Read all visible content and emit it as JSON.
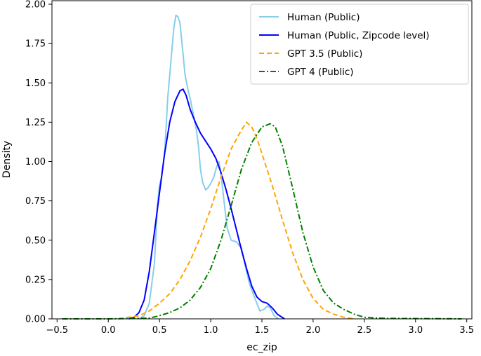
{
  "chart_data": {
    "type": "line",
    "xlabel": "ec_zip",
    "ylabel": "Density",
    "xlim": [
      -0.55,
      3.55
    ],
    "ylim": [
      0,
      2.0
    ],
    "xticks": [
      -0.5,
      0.0,
      0.5,
      1.0,
      1.5,
      2.0,
      2.5,
      3.0,
      3.5
    ],
    "xtick_labels": [
      "−0.5",
      "0.0",
      "0.5",
      "1.0",
      "1.5",
      "2.0",
      "2.5",
      "3.0",
      "3.5"
    ],
    "yticks": [
      0,
      0.25,
      0.5,
      0.75,
      1.0,
      1.25,
      1.5,
      1.75,
      2.0
    ],
    "ytick_labels": [
      "0.00",
      "0.25",
      "0.50",
      "0.75",
      "1.00",
      "1.25",
      "1.50",
      "1.75",
      "2.00"
    ],
    "grid": false,
    "legend_position": "top-right",
    "series": [
      {
        "name": "Human (Public)",
        "color": "#87ceeb",
        "dash": "solid",
        "points": [
          [
            0.3,
            0.0
          ],
          [
            0.35,
            0.02
          ],
          [
            0.4,
            0.1
          ],
          [
            0.45,
            0.35
          ],
          [
            0.48,
            0.72
          ],
          [
            0.5,
            0.85
          ],
          [
            0.52,
            0.9
          ],
          [
            0.55,
            1.05
          ],
          [
            0.58,
            1.4
          ],
          [
            0.62,
            1.7
          ],
          [
            0.64,
            1.85
          ],
          [
            0.66,
            1.93
          ],
          [
            0.68,
            1.92
          ],
          [
            0.7,
            1.88
          ],
          [
            0.72,
            1.75
          ],
          [
            0.75,
            1.55
          ],
          [
            0.78,
            1.45
          ],
          [
            0.8,
            1.4
          ],
          [
            0.83,
            1.3
          ],
          [
            0.86,
            1.2
          ],
          [
            0.88,
            1.1
          ],
          [
            0.9,
            0.95
          ],
          [
            0.92,
            0.87
          ],
          [
            0.95,
            0.82
          ],
          [
            0.97,
            0.83
          ],
          [
            1.0,
            0.86
          ],
          [
            1.03,
            0.9
          ],
          [
            1.06,
            0.97
          ],
          [
            1.08,
            1.0
          ],
          [
            1.1,
            0.92
          ],
          [
            1.13,
            0.75
          ],
          [
            1.16,
            0.58
          ],
          [
            1.2,
            0.5
          ],
          [
            1.25,
            0.49
          ],
          [
            1.3,
            0.45
          ],
          [
            1.35,
            0.3
          ],
          [
            1.38,
            0.22
          ],
          [
            1.42,
            0.15
          ],
          [
            1.45,
            0.1
          ],
          [
            1.48,
            0.05
          ],
          [
            1.52,
            0.06
          ],
          [
            1.55,
            0.08
          ],
          [
            1.58,
            0.07
          ],
          [
            1.62,
            0.02
          ],
          [
            1.66,
            0.0
          ]
        ]
      },
      {
        "name": "Human (Public, Zipcode level)",
        "color": "#0000ff",
        "dash": "solid",
        "points": [
          [
            0.2,
            0.0
          ],
          [
            0.25,
            0.01
          ],
          [
            0.3,
            0.04
          ],
          [
            0.35,
            0.12
          ],
          [
            0.4,
            0.3
          ],
          [
            0.45,
            0.55
          ],
          [
            0.5,
            0.8
          ],
          [
            0.55,
            1.05
          ],
          [
            0.6,
            1.25
          ],
          [
            0.65,
            1.38
          ],
          [
            0.7,
            1.45
          ],
          [
            0.73,
            1.46
          ],
          [
            0.76,
            1.42
          ],
          [
            0.8,
            1.33
          ],
          [
            0.85,
            1.25
          ],
          [
            0.9,
            1.18
          ],
          [
            0.95,
            1.13
          ],
          [
            1.0,
            1.08
          ],
          [
            1.05,
            1.02
          ],
          [
            1.1,
            0.93
          ],
          [
            1.15,
            0.82
          ],
          [
            1.2,
            0.7
          ],
          [
            1.25,
            0.57
          ],
          [
            1.3,
            0.44
          ],
          [
            1.35,
            0.32
          ],
          [
            1.4,
            0.21
          ],
          [
            1.45,
            0.14
          ],
          [
            1.5,
            0.11
          ],
          [
            1.55,
            0.1
          ],
          [
            1.6,
            0.07
          ],
          [
            1.65,
            0.03
          ],
          [
            1.72,
            0.0
          ]
        ]
      },
      {
        "name": "GPT 3.5 (Public)",
        "color": "#ffa500",
        "dash": "dashed",
        "points": [
          [
            0.1,
            0.0
          ],
          [
            0.2,
            0.01
          ],
          [
            0.3,
            0.02
          ],
          [
            0.4,
            0.05
          ],
          [
            0.5,
            0.1
          ],
          [
            0.6,
            0.16
          ],
          [
            0.7,
            0.25
          ],
          [
            0.8,
            0.37
          ],
          [
            0.9,
            0.52
          ],
          [
            1.0,
            0.7
          ],
          [
            1.1,
            0.9
          ],
          [
            1.2,
            1.08
          ],
          [
            1.3,
            1.2
          ],
          [
            1.35,
            1.25
          ],
          [
            1.4,
            1.22
          ],
          [
            1.45,
            1.15
          ],
          [
            1.5,
            1.05
          ],
          [
            1.6,
            0.85
          ],
          [
            1.7,
            0.63
          ],
          [
            1.8,
            0.42
          ],
          [
            1.9,
            0.25
          ],
          [
            2.0,
            0.13
          ],
          [
            2.1,
            0.06
          ],
          [
            2.2,
            0.03
          ],
          [
            2.3,
            0.01
          ],
          [
            2.4,
            0.0
          ]
        ]
      },
      {
        "name": "GPT 4 (Public)",
        "color": "#008000",
        "dash": "dashdot",
        "points": [
          [
            -0.45,
            0.0
          ],
          [
            0.0,
            0.0
          ],
          [
            0.4,
            0.005
          ],
          [
            0.5,
            0.02
          ],
          [
            0.6,
            0.04
          ],
          [
            0.7,
            0.07
          ],
          [
            0.8,
            0.12
          ],
          [
            0.9,
            0.2
          ],
          [
            1.0,
            0.32
          ],
          [
            1.1,
            0.5
          ],
          [
            1.2,
            0.72
          ],
          [
            1.3,
            0.95
          ],
          [
            1.4,
            1.12
          ],
          [
            1.5,
            1.22
          ],
          [
            1.58,
            1.24
          ],
          [
            1.63,
            1.22
          ],
          [
            1.7,
            1.1
          ],
          [
            1.8,
            0.83
          ],
          [
            1.9,
            0.55
          ],
          [
            2.0,
            0.33
          ],
          [
            2.1,
            0.18
          ],
          [
            2.2,
            0.1
          ],
          [
            2.3,
            0.06
          ],
          [
            2.4,
            0.03
          ],
          [
            2.5,
            0.01
          ],
          [
            2.7,
            0.003
          ],
          [
            3.45,
            0.0
          ]
        ]
      }
    ]
  }
}
